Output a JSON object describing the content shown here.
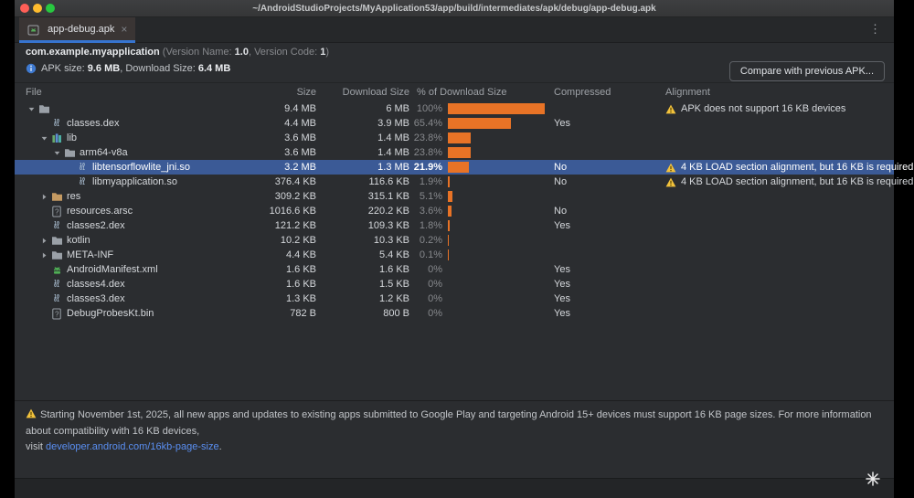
{
  "window": {
    "title": "~/AndroidStudioProjects/MyApplication53/app/build/intermediates/apk/debug/app-debug.apk"
  },
  "tab_bar": {
    "active_tab_label": "app-debug.apk",
    "close_label": "×",
    "menu_icon": "⋮"
  },
  "apk_header": {
    "package_name": "com.example.myapplication",
    "version_open": "(Version Name: ",
    "version_name": "1.0",
    "version_mid": ", Version Code: ",
    "version_code": "1",
    "version_close": ")"
  },
  "summary": {
    "apk_size_label": "APK size: ",
    "apk_size_value": "9.6 MB",
    "download_size_label": ", Download Size: ",
    "download_size_value": "6.4 MB",
    "compare_button_label": "Compare with previous APK..."
  },
  "table": {
    "columns": [
      "File",
      "Size",
      "Download Size",
      "% of Download Size",
      "Compressed",
      "Alignment"
    ],
    "rows": [
      {
        "name": "",
        "level": 0,
        "expand": "open",
        "icon": "folder-icon",
        "size": "9.4 MB",
        "download_size": "6 MB",
        "pct_label": "100%",
        "pct": 100,
        "compressed": "",
        "alignment": "APK does not support 16 KB devices",
        "selected": false
      },
      {
        "name": "classes.dex",
        "level": 1,
        "expand": "none",
        "icon": "binary-icon",
        "size": "4.4 MB",
        "download_size": "3.9 MB",
        "pct_label": "65.4%",
        "pct": 65.4,
        "compressed": "Yes",
        "alignment": "",
        "selected": false
      },
      {
        "name": "lib",
        "level": 1,
        "expand": "open",
        "icon": "lib-icon",
        "size": "3.6 MB",
        "download_size": "1.4 MB",
        "pct_label": "23.8%",
        "pct": 23.8,
        "compressed": "",
        "alignment": "",
        "selected": false
      },
      {
        "name": "arm64-v8a",
        "level": 2,
        "expand": "open",
        "icon": "folder-icon",
        "size": "3.6 MB",
        "download_size": "1.4 MB",
        "pct_label": "23.8%",
        "pct": 23.8,
        "compressed": "",
        "alignment": "",
        "selected": false
      },
      {
        "name": "libtensorflowlite_jni.so",
        "level": 3,
        "expand": "none",
        "icon": "binary-icon",
        "size": "3.2 MB",
        "download_size": "1.3 MB",
        "pct_label": "21.9%",
        "pct": 21.9,
        "compressed": "No",
        "alignment": "4 KB LOAD section alignment, but 16 KB is required",
        "selected": true
      },
      {
        "name": "libmyapplication.so",
        "level": 3,
        "expand": "none",
        "icon": "binary-icon",
        "size": "376.4 KB",
        "download_size": "116.6 KB",
        "pct_label": "1.9%",
        "pct": 1.9,
        "compressed": "No",
        "alignment": "4 KB LOAD section alignment, but 16 KB is required",
        "selected": false
      },
      {
        "name": "res",
        "level": 1,
        "expand": "closed",
        "icon": "folder-res-icon",
        "size": "309.2 KB",
        "download_size": "315.1 KB",
        "pct_label": "5.1%",
        "pct": 5.1,
        "compressed": "",
        "alignment": "",
        "selected": false
      },
      {
        "name": "resources.arsc",
        "level": 1,
        "expand": "none",
        "icon": "unknown-file-icon",
        "size": "1016.6 KB",
        "download_size": "220.2 KB",
        "pct_label": "3.6%",
        "pct": 3.6,
        "compressed": "No",
        "alignment": "",
        "selected": false
      },
      {
        "name": "classes2.dex",
        "level": 1,
        "expand": "none",
        "icon": "binary-icon",
        "size": "121.2 KB",
        "download_size": "109.3 KB",
        "pct_label": "1.8%",
        "pct": 1.8,
        "compressed": "Yes",
        "alignment": "",
        "selected": false
      },
      {
        "name": "kotlin",
        "level": 1,
        "expand": "closed",
        "icon": "folder-icon",
        "size": "10.2 KB",
        "download_size": "10.3 KB",
        "pct_label": "0.2%",
        "pct": 0.2,
        "compressed": "",
        "alignment": "",
        "selected": false
      },
      {
        "name": "META-INF",
        "level": 1,
        "expand": "closed",
        "icon": "folder-icon",
        "size": "4.4 KB",
        "download_size": "5.4 KB",
        "pct_label": "0.1%",
        "pct": 0.1,
        "compressed": "",
        "alignment": "",
        "selected": false
      },
      {
        "name": "AndroidManifest.xml",
        "level": 1,
        "expand": "none",
        "icon": "android-icon",
        "size": "1.6 KB",
        "download_size": "1.6 KB",
        "pct_label": "0%",
        "pct": 0,
        "compressed": "Yes",
        "alignment": "",
        "selected": false
      },
      {
        "name": "classes4.dex",
        "level": 1,
        "expand": "none",
        "icon": "binary-icon",
        "size": "1.6 KB",
        "download_size": "1.5 KB",
        "pct_label": "0%",
        "pct": 0,
        "compressed": "Yes",
        "alignment": "",
        "selected": false
      },
      {
        "name": "classes3.dex",
        "level": 1,
        "expand": "none",
        "icon": "binary-icon",
        "size": "1.3 KB",
        "download_size": "1.2 KB",
        "pct_label": "0%",
        "pct": 0,
        "compressed": "Yes",
        "alignment": "",
        "selected": false
      },
      {
        "name": "DebugProbesKt.bin",
        "level": 1,
        "expand": "none",
        "icon": "unknown-file-icon",
        "size": "782 B",
        "download_size": "800 B",
        "pct_label": "0%",
        "pct": 0,
        "compressed": "Yes",
        "alignment": "",
        "selected": false
      }
    ]
  },
  "footer": {
    "warning_line1": "Starting November 1st, 2025, all new apps and updates to existing apps submitted to Google Play and targeting Android 15+ devices must support 16 KB page sizes. For more information about compatibility with 16 KB devices,",
    "warning_line2_prefix": "visit ",
    "warning_link": "developer.android.com/16kb-page-size",
    "warning_suffix": "."
  },
  "colors": {
    "bar_orange": "#e87326",
    "selection_blue": "#3b5a96",
    "tab_underline_blue": "#3674d0",
    "link_blue": "#5a8ff2",
    "warning_yellow": "#f2c23c"
  }
}
